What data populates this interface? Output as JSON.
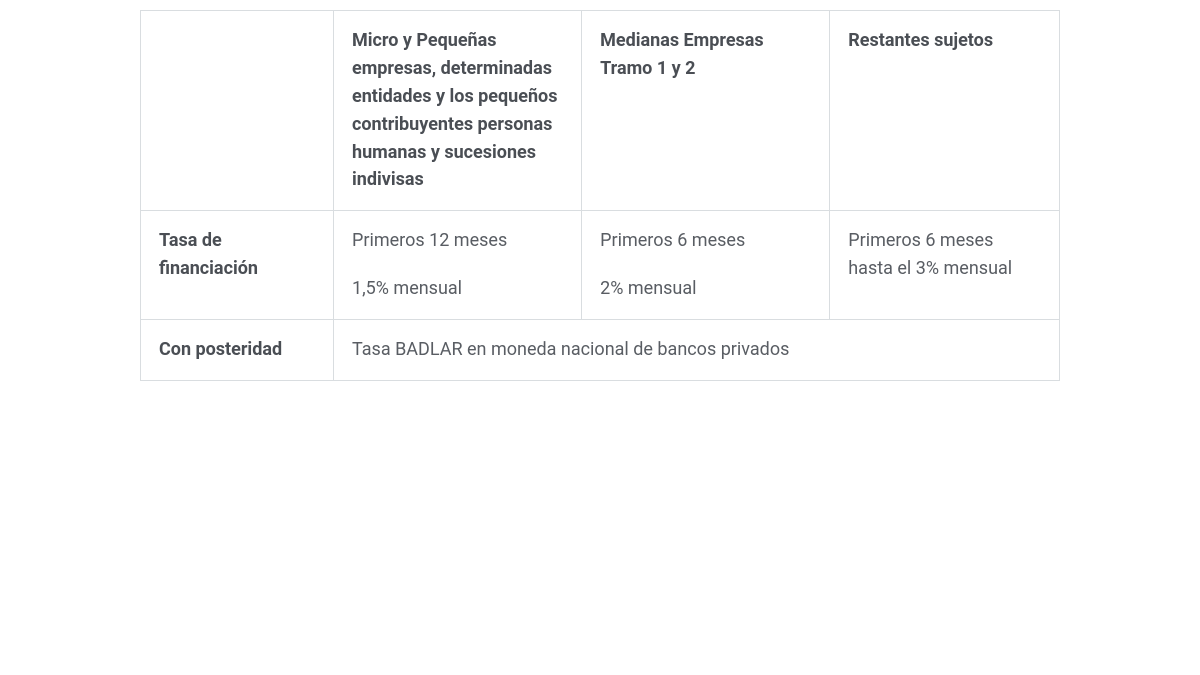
{
  "table": {
    "columns": {
      "blank": "",
      "col1": "Micro y Pequeñas empresas, determinadas entidades y los pequeños contribuyentes personas humanas y sucesiones indivisas",
      "col2": "Medianas Empresas Tramo 1 y 2",
      "col3": "Restantes sujetos"
    },
    "rows": {
      "row1": {
        "label": "Tasa de financiación",
        "cell1": {
          "line1": "Primeros 12 meses",
          "line2": "1,5% mensual"
        },
        "cell2": {
          "line1": "Primeros 6 meses",
          "line2": "2% mensual"
        },
        "cell3": {
          "line1": "Primeros 6 meses hasta el 3% mensual"
        }
      },
      "row2": {
        "label": "Con posteridad",
        "merged": "Tasa BADLAR en moneda nacional de bancos privados"
      }
    },
    "style": {
      "border_color": "#d9dde0",
      "text_color": "#595d63",
      "header_text_color": "#4a4e54",
      "background_color": "#ffffff",
      "font_size_pt": 14,
      "line_height": 1.55
    }
  }
}
